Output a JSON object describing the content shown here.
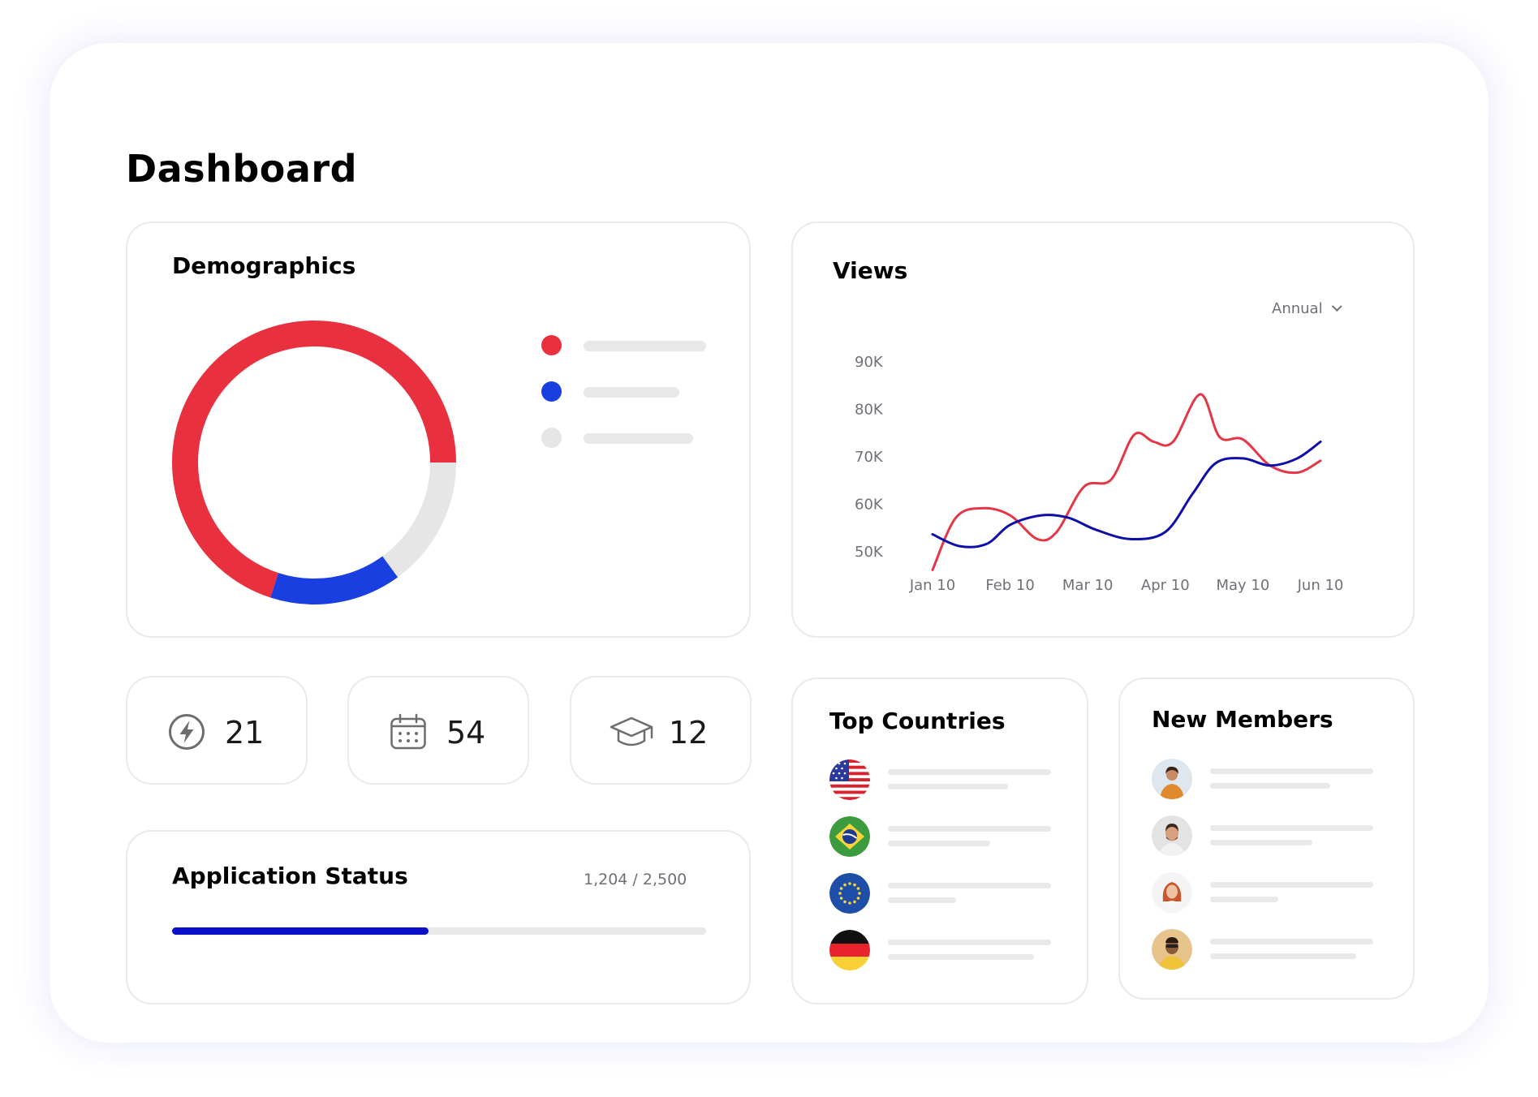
{
  "page": {
    "title": "Dashboard"
  },
  "demographics": {
    "title": "Demographics",
    "segments": [
      {
        "color": "#e8303f",
        "fraction": 0.7
      },
      {
        "color": "#1a3fe0",
        "fraction": 0.15
      },
      {
        "color": "#e6e6e6",
        "fraction": 0.15
      }
    ],
    "legend_colors": [
      "#e8303f",
      "#1a3fe0",
      "#e6e6e6"
    ]
  },
  "views": {
    "title": "Views",
    "period": "Annual",
    "period_icon": "chevron-down-icon"
  },
  "chart_data": {
    "type": "line",
    "x": [
      "Jan 10",
      "Feb 10",
      "Mar 10",
      "Apr 10",
      "May 10",
      "Jun 10"
    ],
    "y_ticks": [
      "50K",
      "60K",
      "70K",
      "80K",
      "90K"
    ],
    "ylim": [
      45000,
      95000
    ],
    "series": [
      {
        "color": "#e53645",
        "points": [
          [
            0.0,
            46000
          ],
          [
            0.3,
            57000
          ],
          [
            0.65,
            59000
          ],
          [
            1.0,
            57500
          ],
          [
            1.35,
            52500
          ],
          [
            1.6,
            54000
          ],
          [
            1.95,
            63500
          ],
          [
            2.3,
            65000
          ],
          [
            2.6,
            74500
          ],
          [
            2.85,
            73000
          ],
          [
            3.1,
            73000
          ],
          [
            3.45,
            83000
          ],
          [
            3.7,
            74000
          ],
          [
            4.0,
            73500
          ],
          [
            4.35,
            68000
          ],
          [
            4.7,
            66500
          ],
          [
            5.0,
            69000
          ]
        ]
      },
      {
        "color": "#0f0fa8",
        "points": [
          [
            0.0,
            53500
          ],
          [
            0.35,
            51000
          ],
          [
            0.7,
            51500
          ],
          [
            1.0,
            55500
          ],
          [
            1.4,
            57500
          ],
          [
            1.75,
            57000
          ],
          [
            2.1,
            54500
          ],
          [
            2.55,
            52500
          ],
          [
            3.0,
            54000
          ],
          [
            3.35,
            62000
          ],
          [
            3.65,
            68500
          ],
          [
            4.0,
            69500
          ],
          [
            4.35,
            68000
          ],
          [
            4.7,
            69500
          ],
          [
            5.0,
            73000
          ]
        ]
      }
    ]
  },
  "stats": [
    {
      "icon": "lightning-icon",
      "value": "21"
    },
    {
      "icon": "calendar-icon",
      "value": "54"
    },
    {
      "icon": "graduation-cap-icon",
      "value": "12"
    }
  ],
  "app_status": {
    "title": "Application Status",
    "count_text": "1,204 / 2,500",
    "progress": 0.48,
    "progress_color": "#0a10c8"
  },
  "countries": {
    "title": "Top Countries",
    "items": [
      {
        "flag": "usa-flag-icon"
      },
      {
        "flag": "brazil-flag-icon"
      },
      {
        "flag": "eu-flag-icon"
      },
      {
        "flag": "germany-flag-icon"
      }
    ]
  },
  "members": {
    "title": "New Members",
    "items": [
      {
        "avatar": "member-avatar-1"
      },
      {
        "avatar": "member-avatar-2"
      },
      {
        "avatar": "member-avatar-3"
      },
      {
        "avatar": "member-avatar-4"
      }
    ]
  }
}
